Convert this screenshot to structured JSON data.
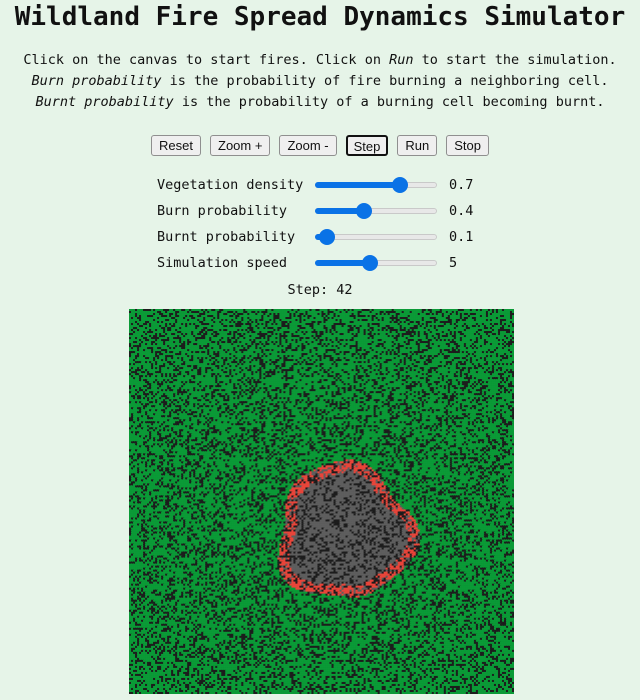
{
  "title": "Wildland Fire Spread Dynamics Simulator",
  "instructions": {
    "line1": {
      "pre": "Click on the canvas to start fires. Click on ",
      "em": "Run",
      "post": " to start the simulation."
    },
    "line2": {
      "em": "Burn probability",
      "post": " is the probability of fire burning a neighboring cell."
    },
    "line3": {
      "em": "Burnt probability",
      "post": " is the probability of a burning cell becoming burnt."
    }
  },
  "buttons": {
    "reset": "Reset",
    "zoom_in": "Zoom +",
    "zoom_out": "Zoom -",
    "step": "Step",
    "run": "Run",
    "stop": "Stop"
  },
  "sliders": [
    {
      "label": "Vegetation density",
      "value": "0.7",
      "fraction": 0.7
    },
    {
      "label": "Burn probability",
      "value": "0.4",
      "fraction": 0.4
    },
    {
      "label": "Burnt probability",
      "value": "0.1",
      "fraction": 0.1
    },
    {
      "label": "Simulation speed",
      "value": "5",
      "fraction": 0.45
    }
  ],
  "status": {
    "step_label": "Step:",
    "step_value": "42"
  },
  "simulation": {
    "cell_colors": {
      "vegetation": "#0b9a37",
      "empty": "#1d1d1d",
      "burning": "#e8453a",
      "burnt": "#5e5e5e"
    },
    "accent_color": "#0a72e6"
  }
}
